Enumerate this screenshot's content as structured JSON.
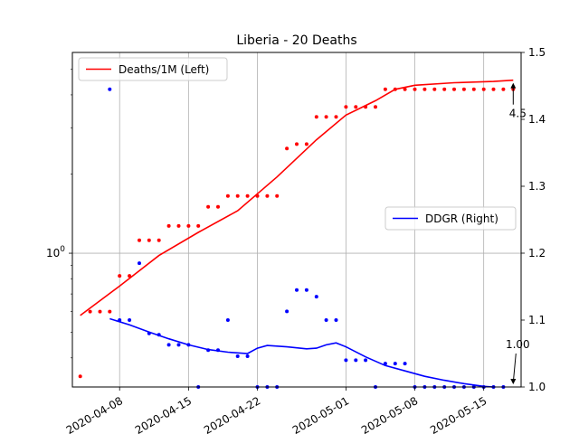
{
  "chart_data": {
    "type": "line",
    "title": "Liberia - 20 Deaths",
    "x_ticks": [
      "2020-04-08",
      "2020-04-15",
      "2020-04-22",
      "2020-05-01",
      "2020-05-08",
      "2020-05-15"
    ],
    "y_left": {
      "scale": "log",
      "ylim": [
        0.31,
        5.8
      ],
      "tick_labels": [
        "10^0"
      ],
      "tick_values": [
        1
      ]
    },
    "y_right": {
      "scale": "linear",
      "ylim": [
        1.0,
        1.5
      ],
      "ticks": [
        1.0,
        1.1,
        1.2,
        1.3,
        1.4,
        1.5
      ]
    },
    "grid": true,
    "legends": [
      {
        "location": "top-left",
        "entries": [
          {
            "label": "Deaths/1M (Left)",
            "color": "#ff0000"
          }
        ]
      },
      {
        "location": "center-right",
        "entries": [
          {
            "label": "DDGR (Right)",
            "color": "#0000ff"
          }
        ]
      }
    ],
    "annotations": [
      {
        "text": "4.5",
        "x": "2020-05-18",
        "axis": "left"
      },
      {
        "text": "1.00",
        "x": "2020-05-18",
        "axis": "right"
      }
    ],
    "series": [
      {
        "name": "Deaths/1M (Left)",
        "axis": "left",
        "color": "#ff0000",
        "kind": "scatter",
        "points": [
          [
            "2020-04-04",
            0.34
          ],
          [
            "2020-04-05",
            0.6
          ],
          [
            "2020-04-06",
            0.6
          ],
          [
            "2020-04-07",
            0.6
          ],
          [
            "2020-04-08",
            0.82
          ],
          [
            "2020-04-09",
            0.82
          ],
          [
            "2020-04-10",
            1.12
          ],
          [
            "2020-04-11",
            1.12
          ],
          [
            "2020-04-12",
            1.12
          ],
          [
            "2020-04-13",
            1.27
          ],
          [
            "2020-04-14",
            1.27
          ],
          [
            "2020-04-15",
            1.27
          ],
          [
            "2020-04-16",
            1.27
          ],
          [
            "2020-04-17",
            1.5
          ],
          [
            "2020-04-18",
            1.5
          ],
          [
            "2020-04-19",
            1.65
          ],
          [
            "2020-04-20",
            1.65
          ],
          [
            "2020-04-21",
            1.65
          ],
          [
            "2020-04-22",
            1.65
          ],
          [
            "2020-04-23",
            1.65
          ],
          [
            "2020-04-24",
            1.65
          ],
          [
            "2020-04-25",
            2.5
          ],
          [
            "2020-04-26",
            2.6
          ],
          [
            "2020-04-27",
            2.6
          ],
          [
            "2020-04-28",
            3.3
          ],
          [
            "2020-04-29",
            3.3
          ],
          [
            "2020-04-30",
            3.3
          ],
          [
            "2020-05-01",
            3.6
          ],
          [
            "2020-05-02",
            3.6
          ],
          [
            "2020-05-03",
            3.6
          ],
          [
            "2020-05-04",
            3.6
          ],
          [
            "2020-05-05",
            4.2
          ],
          [
            "2020-05-06",
            4.2
          ],
          [
            "2020-05-07",
            4.2
          ],
          [
            "2020-05-08",
            4.2
          ],
          [
            "2020-05-09",
            4.2
          ],
          [
            "2020-05-10",
            4.2
          ],
          [
            "2020-05-11",
            4.2
          ],
          [
            "2020-05-12",
            4.2
          ],
          [
            "2020-05-13",
            4.2
          ],
          [
            "2020-05-14",
            4.2
          ],
          [
            "2020-05-15",
            4.2
          ],
          [
            "2020-05-16",
            4.2
          ],
          [
            "2020-05-17",
            4.2
          ],
          [
            "2020-05-18",
            4.2
          ]
        ]
      },
      {
        "name": "Deaths/1M (Left)",
        "axis": "left",
        "color": "#ff0000",
        "kind": "line",
        "points": [
          [
            "2020-04-04",
            0.58
          ],
          [
            "2020-04-08",
            0.75
          ],
          [
            "2020-04-12",
            0.98
          ],
          [
            "2020-04-16",
            1.2
          ],
          [
            "2020-04-20",
            1.45
          ],
          [
            "2020-04-24",
            1.95
          ],
          [
            "2020-04-28",
            2.7
          ],
          [
            "2020-05-01",
            3.35
          ],
          [
            "2020-05-04",
            3.8
          ],
          [
            "2020-05-06",
            4.2
          ],
          [
            "2020-05-08",
            4.35
          ],
          [
            "2020-05-12",
            4.45
          ],
          [
            "2020-05-16",
            4.5
          ],
          [
            "2020-05-18",
            4.55
          ]
        ]
      },
      {
        "name": "DDGR (Right)",
        "axis": "right",
        "color": "#0000ff",
        "kind": "scatter",
        "points": [
          [
            "2020-04-07",
            1.445
          ],
          [
            "2020-04-08",
            1.1
          ],
          [
            "2020-04-09",
            1.1
          ],
          [
            "2020-04-10",
            1.185
          ],
          [
            "2020-04-11",
            1.08
          ],
          [
            "2020-04-12",
            1.078
          ],
          [
            "2020-04-13",
            1.063
          ],
          [
            "2020-04-14",
            1.063
          ],
          [
            "2020-04-15",
            1.063
          ],
          [
            "2020-04-16",
            1.0
          ],
          [
            "2020-04-17",
            1.055
          ],
          [
            "2020-04-18",
            1.055
          ],
          [
            "2020-04-19",
            1.1
          ],
          [
            "2020-04-20",
            1.046
          ],
          [
            "2020-04-21",
            1.046
          ],
          [
            "2020-04-22",
            1.0
          ],
          [
            "2020-04-23",
            1.0
          ],
          [
            "2020-04-24",
            1.0
          ],
          [
            "2020-04-25",
            1.113
          ],
          [
            "2020-04-26",
            1.145
          ],
          [
            "2020-04-27",
            1.145
          ],
          [
            "2020-04-28",
            1.135
          ],
          [
            "2020-04-29",
            1.1
          ],
          [
            "2020-04-30",
            1.1
          ],
          [
            "2020-05-01",
            1.04
          ],
          [
            "2020-05-02",
            1.04
          ],
          [
            "2020-05-03",
            1.04
          ],
          [
            "2020-05-04",
            1.0
          ],
          [
            "2020-05-05",
            1.035
          ],
          [
            "2020-05-06",
            1.035
          ],
          [
            "2020-05-07",
            1.035
          ],
          [
            "2020-05-08",
            1.0
          ],
          [
            "2020-05-09",
            1.0
          ],
          [
            "2020-05-10",
            1.0
          ],
          [
            "2020-05-11",
            1.0
          ],
          [
            "2020-05-12",
            1.0
          ],
          [
            "2020-05-13",
            1.0
          ],
          [
            "2020-05-14",
            1.0
          ],
          [
            "2020-05-15",
            1.0
          ],
          [
            "2020-05-16",
            1.0
          ],
          [
            "2020-05-17",
            1.0
          ]
        ]
      },
      {
        "name": "DDGR (Right)",
        "axis": "right",
        "color": "#0000ff",
        "kind": "line",
        "points": [
          [
            "2020-04-07",
            1.102
          ],
          [
            "2020-04-09",
            1.093
          ],
          [
            "2020-04-11",
            1.082
          ],
          [
            "2020-04-13",
            1.072
          ],
          [
            "2020-04-15",
            1.063
          ],
          [
            "2020-04-17",
            1.056
          ],
          [
            "2020-04-19",
            1.052
          ],
          [
            "2020-04-21",
            1.05
          ],
          [
            "2020-04-22",
            1.058
          ],
          [
            "2020-04-23",
            1.062
          ],
          [
            "2020-04-25",
            1.06
          ],
          [
            "2020-04-27",
            1.057
          ],
          [
            "2020-04-28",
            1.058
          ],
          [
            "2020-04-29",
            1.063
          ],
          [
            "2020-04-30",
            1.066
          ],
          [
            "2020-05-01",
            1.06
          ],
          [
            "2020-05-03",
            1.045
          ],
          [
            "2020-05-05",
            1.032
          ],
          [
            "2020-05-07",
            1.024
          ],
          [
            "2020-05-09",
            1.016
          ],
          [
            "2020-05-11",
            1.01
          ],
          [
            "2020-05-13",
            1.005
          ],
          [
            "2020-05-15",
            1.001
          ],
          [
            "2020-05-16",
            1.0
          ]
        ]
      }
    ]
  }
}
